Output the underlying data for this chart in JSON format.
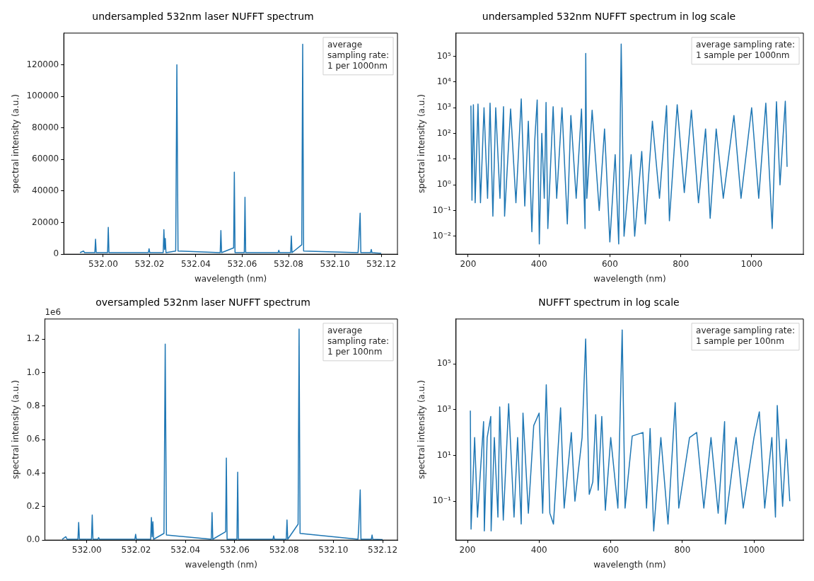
{
  "chart_data": [
    {
      "type": "line",
      "title": "undersampled 532nm laser NUFFT spectrum",
      "xlabel": "wavelength (nm)",
      "ylabel": "spectral intensity (a.u.)",
      "annotations": [
        "average\nsampling rate:\n1 per 1000nm"
      ],
      "xlim": [
        531.983,
        532.127
      ],
      "xticks": [
        {
          "value": 532.0,
          "label": "532.00"
        },
        {
          "value": 532.02,
          "label": "532.02"
        },
        {
          "value": 532.04,
          "label": "532.04"
        },
        {
          "value": 532.06,
          "label": "532.06"
        },
        {
          "value": 532.08,
          "label": "532.08"
        },
        {
          "value": 532.1,
          "label": "532.10"
        },
        {
          "value": 532.12,
          "label": "532.12"
        }
      ],
      "ylim": [
        0,
        140000
      ],
      "yticks": [
        0,
        20000,
        40000,
        60000,
        80000,
        100000,
        120000
      ],
      "grid": false,
      "legend": false,
      "marker": "none",
      "line_style": "solid",
      "series": [
        {
          "color": "#1f77b4",
          "x": [
            531.99,
            531.9915,
            531.992,
            531.9964,
            531.9967,
            531.997,
            532.0019,
            532.0022,
            532.0025,
            532.0195,
            532.0198,
            532.0201,
            532.0259,
            532.0262,
            532.0265,
            532.0268,
            532.0271,
            532.0313,
            532.0318,
            532.0323,
            532.0505,
            532.0508,
            532.0511,
            532.0563,
            532.0566,
            532.0569,
            532.0609,
            532.0612,
            532.0615,
            532.0755,
            532.0758,
            532.0761,
            532.0809,
            532.0812,
            532.0815,
            532.0857,
            532.0861,
            532.0865,
            532.11,
            532.1103,
            532.1109,
            532.1112,
            532.1154,
            532.1157,
            532.116,
            532.12
          ],
          "values": [
            1000,
            2000,
            1000,
            1000,
            9500,
            1000,
            1000,
            17000,
            1000,
            1000,
            3500,
            1000,
            1000,
            15500,
            3000,
            10000,
            1000,
            2000,
            120000,
            2000,
            1000,
            15000,
            1000,
            4000,
            52000,
            1000,
            1000,
            36000,
            1000,
            1000,
            2500,
            1000,
            1000,
            11500,
            1000,
            6000,
            133000,
            2000,
            1000,
            8000,
            26000,
            1000,
            1000,
            3000,
            1000,
            500
          ]
        }
      ]
    },
    {
      "type": "line",
      "title": "undersampled 532nm NUFFT spectrum in log scale",
      "xlabel": "wavelength (nm)",
      "ylabel": "spectral intensity (a.u.)",
      "annotations": [
        "average sampling rate:\n1 sample per 1000nm"
      ],
      "log": "y",
      "xlim": [
        166,
        1146
      ],
      "xticks": [
        200,
        400,
        600,
        800,
        1000
      ],
      "ylim": [
        0.002,
        800000
      ],
      "yticks": [
        {
          "value": 0.01,
          "label": "10⁻²"
        },
        {
          "value": 0.1,
          "label": "10⁻¹"
        },
        {
          "value": 1,
          "label": "10⁰"
        },
        {
          "value": 10,
          "label": "10¹"
        },
        {
          "value": 100,
          "label": "10²"
        },
        {
          "value": 1000,
          "label": "10³"
        },
        {
          "value": 10000,
          "label": "10⁴"
        },
        {
          "value": 100000,
          "label": "10⁵"
        }
      ],
      "grid": false,
      "legend": false,
      "marker": "none",
      "line_style": "solid",
      "series": [
        {
          "color": "#1f77b4",
          "x": [
            208,
            211,
            215,
            220,
            228,
            235,
            245,
            255,
            262,
            270,
            278,
            290,
            300,
            303,
            320,
            335,
            350,
            360,
            370,
            380,
            388,
            395,
            401,
            408,
            415,
            420,
            425,
            440,
            450,
            465,
            480,
            490,
            505,
            520,
            530,
            532,
            535,
            550,
            570,
            585,
            600,
            615,
            625,
            632,
            640,
            660,
            670,
            690,
            700,
            720,
            740,
            760,
            768,
            790,
            810,
            830,
            850,
            870,
            883,
            900,
            920,
            950,
            970,
            1000,
            1020,
            1040,
            1058,
            1070,
            1080,
            1095,
            1100
          ],
          "values": [
            1200,
            0.25,
            1300,
            0.2,
            1400,
            0.2,
            1000,
            0.3,
            1500,
            0.06,
            1000,
            0.3,
            1100,
            0.06,
            900,
            0.2,
            2200,
            0.15,
            300,
            0.015,
            50,
            2000,
            0.005,
            100,
            0.3,
            1600,
            0.02,
            1100,
            0.3,
            1000,
            0.03,
            500,
            0.3,
            900,
            0.02,
            130000,
            0.3,
            800,
            0.1,
            150,
            0.006,
            15,
            0.005,
            300000,
            0.01,
            15,
            0.01,
            20,
            0.03,
            300,
            0.3,
            1200,
            0.04,
            1300,
            0.5,
            800,
            0.2,
            150,
            0.05,
            150,
            0.3,
            500,
            0.3,
            1000,
            0.3,
            1500,
            0.02,
            1700,
            1.0,
            1800,
            5
          ]
        }
      ]
    },
    {
      "type": "line",
      "title": "oversampled 532nm laser NUFFT spectrum",
      "xlabel": "wavelength (nm)",
      "ylabel": "spectral intensity (a.u.)",
      "annotations": [
        "average\nsampling rate:\n1 per 100nm",
        "1e6"
      ],
      "xlim": [
        531.983,
        532.126
      ],
      "xticks": [
        {
          "value": 532.0,
          "label": "532.00"
        },
        {
          "value": 532.02,
          "label": "532.02"
        },
        {
          "value": 532.04,
          "label": "532.04"
        },
        {
          "value": 532.06,
          "label": "532.06"
        },
        {
          "value": 532.08,
          "label": "532.08"
        },
        {
          "value": 532.1,
          "label": "532.10"
        },
        {
          "value": 532.12,
          "label": "532.12"
        }
      ],
      "ylim": [
        0,
        1.32
      ],
      "yticks": [
        {
          "value": 0,
          "label": "0.0"
        },
        0.2,
        0.4,
        0.6,
        0.8,
        {
          "value": 1.0,
          "label": "1.0"
        },
        1.2
      ],
      "grid": false,
      "legend": false,
      "marker": "none",
      "line_style": "solid",
      "series": [
        {
          "color": "#1f77b4",
          "x": [
            531.99,
            531.9915,
            531.992,
            531.9964,
            531.9967,
            531.997,
            532.0019,
            532.0022,
            532.0025,
            532.0045,
            532.0048,
            532.0051,
            532.0195,
            532.0198,
            532.0201,
            532.0259,
            532.0262,
            532.0265,
            532.0268,
            532.0271,
            532.0313,
            532.0318,
            532.0323,
            532.0505,
            532.0508,
            532.0511,
            532.0563,
            532.0566,
            532.0569,
            532.0609,
            532.0612,
            532.0615,
            532.0755,
            532.0758,
            532.0761,
            532.0809,
            532.0812,
            532.0815,
            532.0857,
            532.0861,
            532.0865,
            532.11,
            532.1103,
            532.1109,
            532.1112,
            532.1154,
            532.1157,
            532.116,
            532.12
          ],
          "values": [
            0.005,
            0.02,
            0.005,
            0.005,
            0.105,
            0.005,
            0.005,
            0.15,
            0.005,
            0.005,
            0.015,
            0.005,
            0.005,
            0.035,
            0.005,
            0.005,
            0.135,
            0.02,
            0.11,
            0.005,
            0.04,
            1.17,
            0.03,
            0.005,
            0.165,
            0.005,
            0.05,
            0.49,
            0.005,
            0.005,
            0.405,
            0.005,
            0.005,
            0.025,
            0.005,
            0.005,
            0.12,
            0.005,
            0.095,
            1.26,
            0.04,
            0.005,
            0.08,
            0.3,
            0.005,
            0.005,
            0.03,
            0.005,
            0.003
          ]
        }
      ]
    },
    {
      "type": "line",
      "title": "NUFFT spectrum in log scale",
      "xlabel": "wavelength (nm)",
      "ylabel": "spectral intensity (a.u.)",
      "annotations": [
        "average sampling rate:\n1 sample per 100nm"
      ],
      "log": "y",
      "xlim": [
        168,
        1138
      ],
      "xticks": [
        200,
        400,
        600,
        800,
        1000
      ],
      "ylim": [
        0.002,
        9000000
      ],
      "yticks": [
        {
          "value": 0.1,
          "label": "10⁻¹"
        },
        {
          "value": 10,
          "label": "10¹"
        },
        {
          "value": 1000,
          "label": "10³"
        },
        {
          "value": 100000,
          "label": "10⁵"
        }
      ],
      "grid": false,
      "legend": false,
      "marker": "none",
      "line_style": "solid",
      "series": [
        {
          "color": "#1f77b4",
          "x": [
            208,
            210,
            220,
            228,
            245,
            247,
            255,
            265,
            266,
            275,
            285,
            290,
            300,
            315,
            330,
            340,
            350,
            355,
            370,
            385,
            400,
            410,
            420,
            430,
            440,
            460,
            470,
            490,
            500,
            520,
            530,
            540,
            550,
            558,
            565,
            575,
            585,
            600,
            620,
            632,
            640,
            660,
            690,
            700,
            710,
            720,
            740,
            760,
            780,
            790,
            820,
            840,
            860,
            880,
            900,
            918,
            920,
            950,
            970,
            1000,
            1015,
            1030,
            1050,
            1060,
            1065,
            1080,
            1090,
            1100
          ],
          "values": [
            900,
            0.006,
            60,
            0.02,
            300,
            0.005,
            60,
            500,
            0.005,
            60,
            0.02,
            1300,
            0.015,
            1800,
            0.02,
            60,
            0.01,
            700,
            0.03,
            200,
            700,
            0.03,
            12000,
            0.03,
            0.01,
            1200,
            0.05,
            100,
            0.1,
            60,
            1200000,
            0.2,
            0.7,
            600,
            0.3,
            500,
            0.04,
            60,
            0.05,
            3000000,
            0.05,
            70,
            100,
            0.05,
            150,
            0.005,
            60,
            0.01,
            2000,
            0.05,
            60,
            100,
            0.05,
            60,
            0.03,
            300,
            0.01,
            60,
            0.05,
            60,
            800,
            0.05,
            60,
            0.02,
            1500,
            0.06,
            50,
            0.1
          ]
        }
      ]
    }
  ]
}
